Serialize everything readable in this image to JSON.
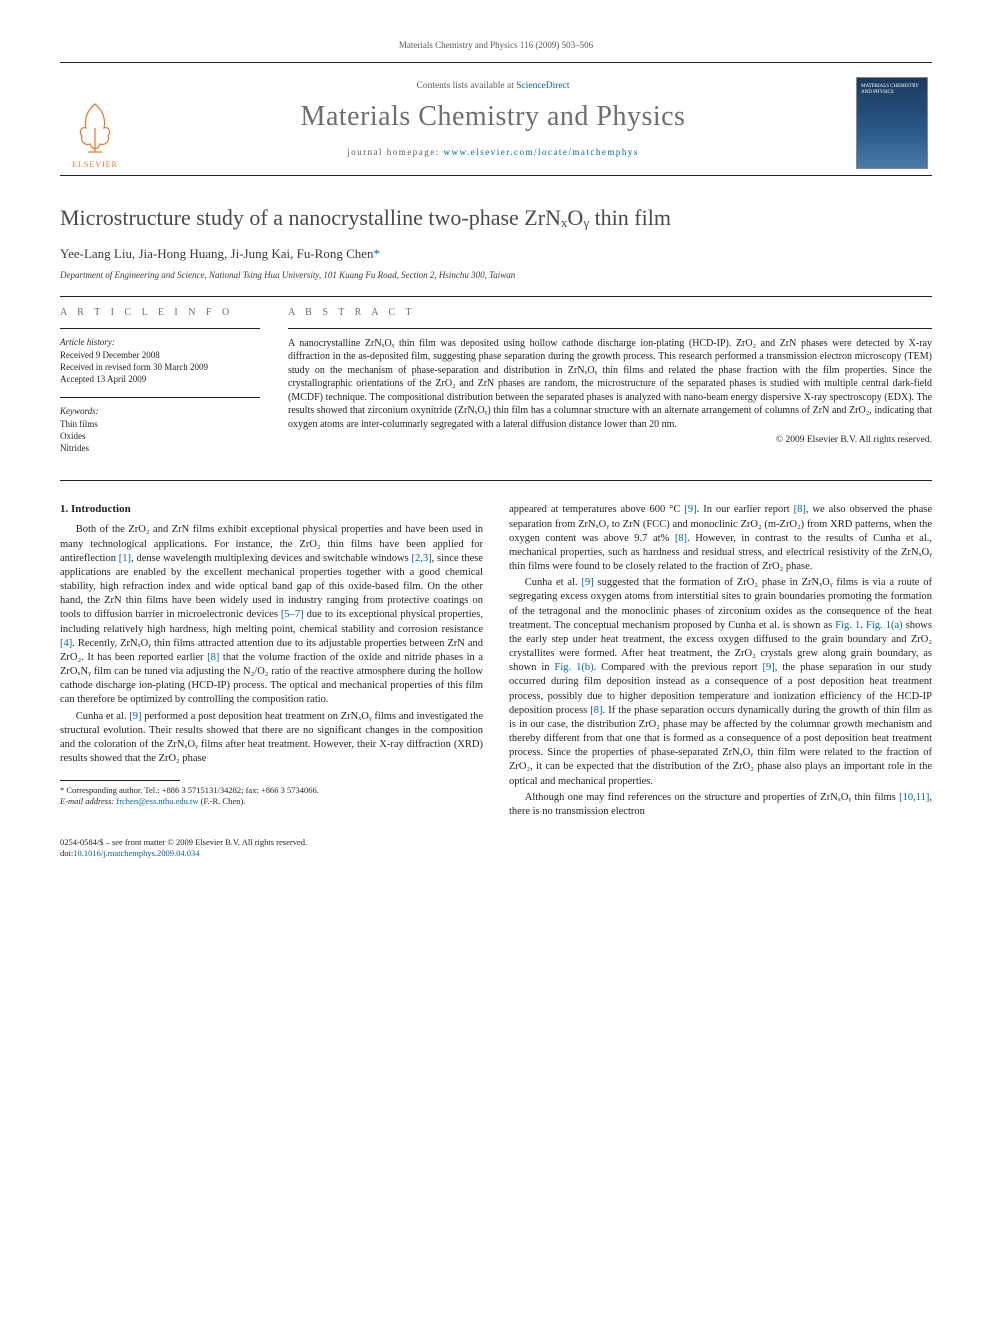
{
  "running_header": "Materials Chemistry and Physics 116 (2009) 503–506",
  "masthead": {
    "contents_prefix": "Contents lists available at ",
    "contents_link": "ScienceDirect",
    "journal_name": "Materials Chemistry and Physics",
    "homepage_prefix": "journal homepage: ",
    "homepage_url": "www.elsevier.com/locate/matchemphys",
    "publisher": "ELSEVIER",
    "cover_title": "MATERIALS CHEMISTRY AND PHYSICS"
  },
  "article": {
    "title": "Microstructure study of a nanocrystalline two-phase ZrNₓOᵧ thin film",
    "authors_html": "Yee-Lang Liu, Jia-Hong Huang, Ji-Jung Kai, Fu-Rong Chen",
    "corr_mark": "*",
    "affiliation": "Department of Engineering and Science, National Tsing Hua University, 101 Kuang Fu Road, Section 2, Hsinchu 300, Taiwan"
  },
  "info": {
    "left_head": "A R T I C L E   I N F O",
    "right_head": "A B S T R A C T",
    "history_title": "Article history:",
    "history": [
      "Received 9 December 2008",
      "Received in revised form 30 March 2009",
      "Accepted 13 April 2009"
    ],
    "keywords_title": "Keywords:",
    "keywords": [
      "Thin films",
      "Oxides",
      "Nitrides"
    ]
  },
  "abstract": "A nanocrystalline ZrNₓOᵧ thin film was deposited using hollow cathode discharge ion-plating (HCD-IP). ZrO₂ and ZrN phases were detected by X-ray diffraction in the as-deposited film, suggesting phase separation during the growth process. This research performed a transmission electron microscopy (TEM) study on the mechanism of phase-separation and distribution in ZrNₓOᵧ thin films and related the phase fraction with the film properties. Since the crystallographic orientations of the ZrO₂ and ZrN phases are random, the microstructure of the separated phases is studied with multiple central dark-field (MCDF) technique. The compositional distribution between the separated phases is analyzed with nano-beam energy dispersive X-ray spectroscopy (EDX). The results showed that zirconium oxynitride (ZrNₓOᵧ) thin film has a columnar structure with an alternate arrangement of columns of ZrN and ZrO₂, indicating that oxygen atoms are inter-columnarly segregated with a lateral diffusion distance lower than 20 nm.",
  "copyright": "© 2009 Elsevier B.V. All rights reserved.",
  "sections": {
    "s1_title": "1.  Introduction",
    "p1": "Both of the ZrO₂ and ZrN films exhibit exceptional physical properties and have been used in many technological applications. For instance, the ZrO₂ thin films have been applied for antireflection [1], dense wavelength multiplexing devices and switchable windows [2,3], since these applications are enabled by the excellent mechanical properties together with a good chemical stability, high refraction index and wide optical band gap of this oxide-based film. On the other hand, the ZrN thin films have been widely used in industry ranging from protective coatings on tools to diffusion barrier in microelectronic devices [5–7] due to its exceptional physical properties, including relatively high hardness, high melting point, chemical stability and corrosion resistance [4]. Recently, ZrNₓOᵧ thin films attracted attention due to its adjustable properties between ZrN and ZrO₂. It has been reported earlier [8] that the volume fraction of the oxide and nitride phases in a ZrOₓNᵧ film can be tuned via adjusting the N₂/O₂ ratio of the reactive atmosphere during the hollow cathode discharge ion-plating (HCD-IP) process. The optical and mechanical properties of this film can therefore be optimized by controlling the composition ratio.",
    "p2": "Cunha et al. [9] performed a post deposition heat treatment on ZrNₓOᵧ films and investigated the structural evolution. Their results showed that there are no significant changes in the composition and the coloration of the ZrNₓOᵧ films after heat treatment. However, their X-ray diffraction (XRD) results showed that the ZrO₂ phase",
    "p3": "appeared at temperatures above 600 °C [9]. In our earlier report [8], we also observed the phase separation from ZrNₓOᵧ to ZrN (FCC) and monoclinic ZrO₂ (m-ZrO₂) from XRD patterns, when the oxygen content was above 9.7 at% [8]. However, in contrast to the results of Cunha et al., mechanical properties, such as hardness and residual stress, and electrical resistivity of the ZrNₓOᵧ thin films were found to be closely related to the fraction of ZrO₂ phase.",
    "p4": "Cunha et al. [9] suggested that the formation of ZrO₂ phase in ZrNₓOᵧ films is via a route of segregating excess oxygen atoms from interstitial sites to grain boundaries promoting the formation of the tetragonal and the monoclinic phases of zirconium oxides as the consequence of the heat treatment. The conceptual mechanism proposed by Cunha et al. is shown as Fig. 1. Fig. 1(a) shows the early step under heat treatment, the excess oxygen diffused to the grain boundary and ZrO₂ crystallites were formed. After heat treatment, the ZrO₂ crystals grew along grain boundary, as shown in Fig. 1(b). Compared with the previous report [9], the phase separation in our study occurred during film deposition instead as a consequence of a post deposition heat treatment process, possibly due to higher deposition temperature and ionization efficiency of the HCD-IP deposition process [8]. If the phase separation occurs dynamically during the growth of thin film as is in our case, the distribution ZrO₂ phase may be affected by the columnar growth mechanism and thereby different from that one that is formed as a consequence of a post deposition heat treatment process. Since the properties of phase-separated ZrNₓOᵧ thin film were related to the fraction of ZrO₂, it can be expected that the distribution of the ZrO₂ phase also plays an important role in the optical and mechanical properties.",
    "p5": "Although one may find references on the structure and properties of ZrNₓOᵧ thin films [10,11], there is no transmission electron"
  },
  "footnote": {
    "corr": "* Corresponding author. Tel.: +886 3 5715131/34282; fax: +866 3 5734066.",
    "email_label": "E-mail address: ",
    "email": "frchen@ess.nthu.edu.tw",
    "email_who": " (F.-R. Chen)."
  },
  "footer": {
    "line1": "0254-0584/$ – see front matter © 2009 Elsevier B.V. All rights reserved.",
    "doi_label": "doi:",
    "doi": "10.1016/j.matchemphys.2009.04.034"
  },
  "colors": {
    "link": "#0066a1",
    "text": "#231f20",
    "muted": "#6d6e71",
    "elsevier": "#e8762c"
  }
}
